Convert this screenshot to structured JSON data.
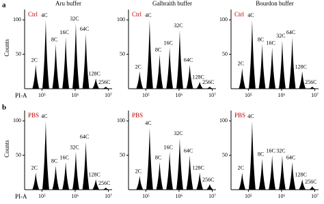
{
  "panel_labels": [
    "a",
    "b"
  ],
  "y_label": "Counts",
  "x_label": "PI-A",
  "chart_data": [
    {
      "type": "peak",
      "title": "Aru buffer",
      "treatment": "Ctrl",
      "treatment_color": "#c00000",
      "color": "#000000",
      "log_x": true,
      "categories": [
        "2C",
        "4C",
        "8C",
        "16C",
        "32C",
        "64C",
        "128C",
        "256C"
      ],
      "x": [
        65000,
        130000,
        260000,
        520000,
        1050000,
        2100000,
        4200000,
        8400000
      ],
      "values": [
        35,
        100,
        65,
        75,
        95,
        80,
        15,
        3
      ],
      "xlim": [
        30000,
        13000000
      ],
      "xticks": [
        {
          "value": 100000,
          "label": "10⁵"
        },
        {
          "value": 1000000,
          "label": "10⁶"
        },
        {
          "value": 10000000,
          "label": "10⁷"
        }
      ],
      "ylim": [
        0,
        115
      ],
      "yticks": [
        50,
        100
      ]
    },
    {
      "type": "peak",
      "title": "Galbraith buffer",
      "treatment": "Ctrl",
      "treatment_color": "#c00000",
      "color": "#000000",
      "log_x": true,
      "categories": [
        "2C",
        "4C",
        "8C",
        "16C",
        "32C",
        "64C",
        "128C",
        "256C"
      ],
      "x": [
        65000,
        130000,
        260000,
        520000,
        1050000,
        2100000,
        4200000,
        8400000
      ],
      "values": [
        25,
        100,
        50,
        60,
        85,
        35,
        10,
        3
      ],
      "xlim": [
        30000,
        13000000
      ],
      "xticks": [
        {
          "value": 100000,
          "label": "10⁵"
        },
        {
          "value": 1000000,
          "label": "10⁶"
        },
        {
          "value": 10000000,
          "label": "10⁷"
        }
      ],
      "ylim": [
        0,
        115
      ],
      "yticks": [
        50,
        100
      ]
    },
    {
      "type": "peak",
      "title": "Bourdon buffer",
      "treatment": "Ctrl",
      "treatment_color": "#c00000",
      "color": "#000000",
      "log_x": true,
      "categories": [
        "2C",
        "4C",
        "8C",
        "16C",
        "32C",
        "64C",
        "128C",
        "256C"
      ],
      "x": [
        65000,
        130000,
        260000,
        520000,
        1050000,
        2100000,
        4200000,
        8400000
      ],
      "values": [
        30,
        100,
        65,
        60,
        70,
        75,
        25,
        3
      ],
      "xlim": [
        30000,
        13000000
      ],
      "xticks": [
        {
          "value": 100000,
          "label": "10⁵"
        },
        {
          "value": 1000000,
          "label": "10⁶"
        },
        {
          "value": 10000000,
          "label": "10⁷"
        }
      ],
      "ylim": [
        0,
        115
      ],
      "yticks": [
        50,
        100
      ]
    },
    {
      "type": "peak",
      "treatment": "PBS",
      "treatment_color": "#c00000",
      "color": "#000000",
      "log_x": true,
      "categories": [
        "2C",
        "4C",
        "8C",
        "16C",
        "32C",
        "64C",
        "128C",
        "256C"
      ],
      "x": [
        65000,
        130000,
        260000,
        520000,
        1050000,
        2100000,
        4200000,
        8400000
      ],
      "values": [
        25,
        100,
        35,
        40,
        55,
        70,
        15,
        3
      ],
      "xlim": [
        30000,
        13000000
      ],
      "xticks": [
        {
          "value": 100000,
          "label": "10⁵"
        },
        {
          "value": 1000000,
          "label": "10⁶"
        },
        {
          "value": 10000000,
          "label": "10⁷"
        }
      ],
      "ylim": [
        0,
        115
      ],
      "yticks": [
        50,
        100
      ]
    },
    {
      "type": "peak",
      "treatment": "PBS",
      "treatment_color": "#c00000",
      "color": "#000000",
      "log_x": true,
      "categories": [
        "2C",
        "4C",
        "8C",
        "16C",
        "32C",
        "64C",
        "128C",
        "256C"
      ],
      "x": [
        65000,
        130000,
        260000,
        520000,
        1050000,
        2100000,
        4200000,
        8400000
      ],
      "values": [
        20,
        90,
        40,
        55,
        75,
        50,
        25,
        8
      ],
      "xlim": [
        30000,
        13000000
      ],
      "xticks": [
        {
          "value": 100000,
          "label": "10⁵"
        },
        {
          "value": 1000000,
          "label": "10⁶"
        },
        {
          "value": 10000000,
          "label": "10⁷"
        }
      ],
      "ylim": [
        0,
        115
      ],
      "yticks": [
        50,
        100
      ]
    },
    {
      "type": "peak",
      "treatment": "PBS",
      "treatment_color": "#c00000",
      "color": "#000000",
      "log_x": true,
      "categories": [
        "2C",
        "4C",
        "8C",
        "16C",
        "32C",
        "64C",
        "128C",
        "256C"
      ],
      "x": [
        65000,
        130000,
        260000,
        520000,
        1050000,
        2100000,
        4200000,
        8400000
      ],
      "values": [
        25,
        100,
        45,
        50,
        50,
        40,
        15,
        5
      ],
      "xlim": [
        30000,
        13000000
      ],
      "xticks": [
        {
          "value": 100000,
          "label": "10⁵"
        },
        {
          "value": 1000000,
          "label": "10⁶"
        },
        {
          "value": 10000000,
          "label": "10⁷"
        }
      ],
      "ylim": [
        0,
        115
      ],
      "yticks": [
        50,
        100
      ]
    }
  ]
}
